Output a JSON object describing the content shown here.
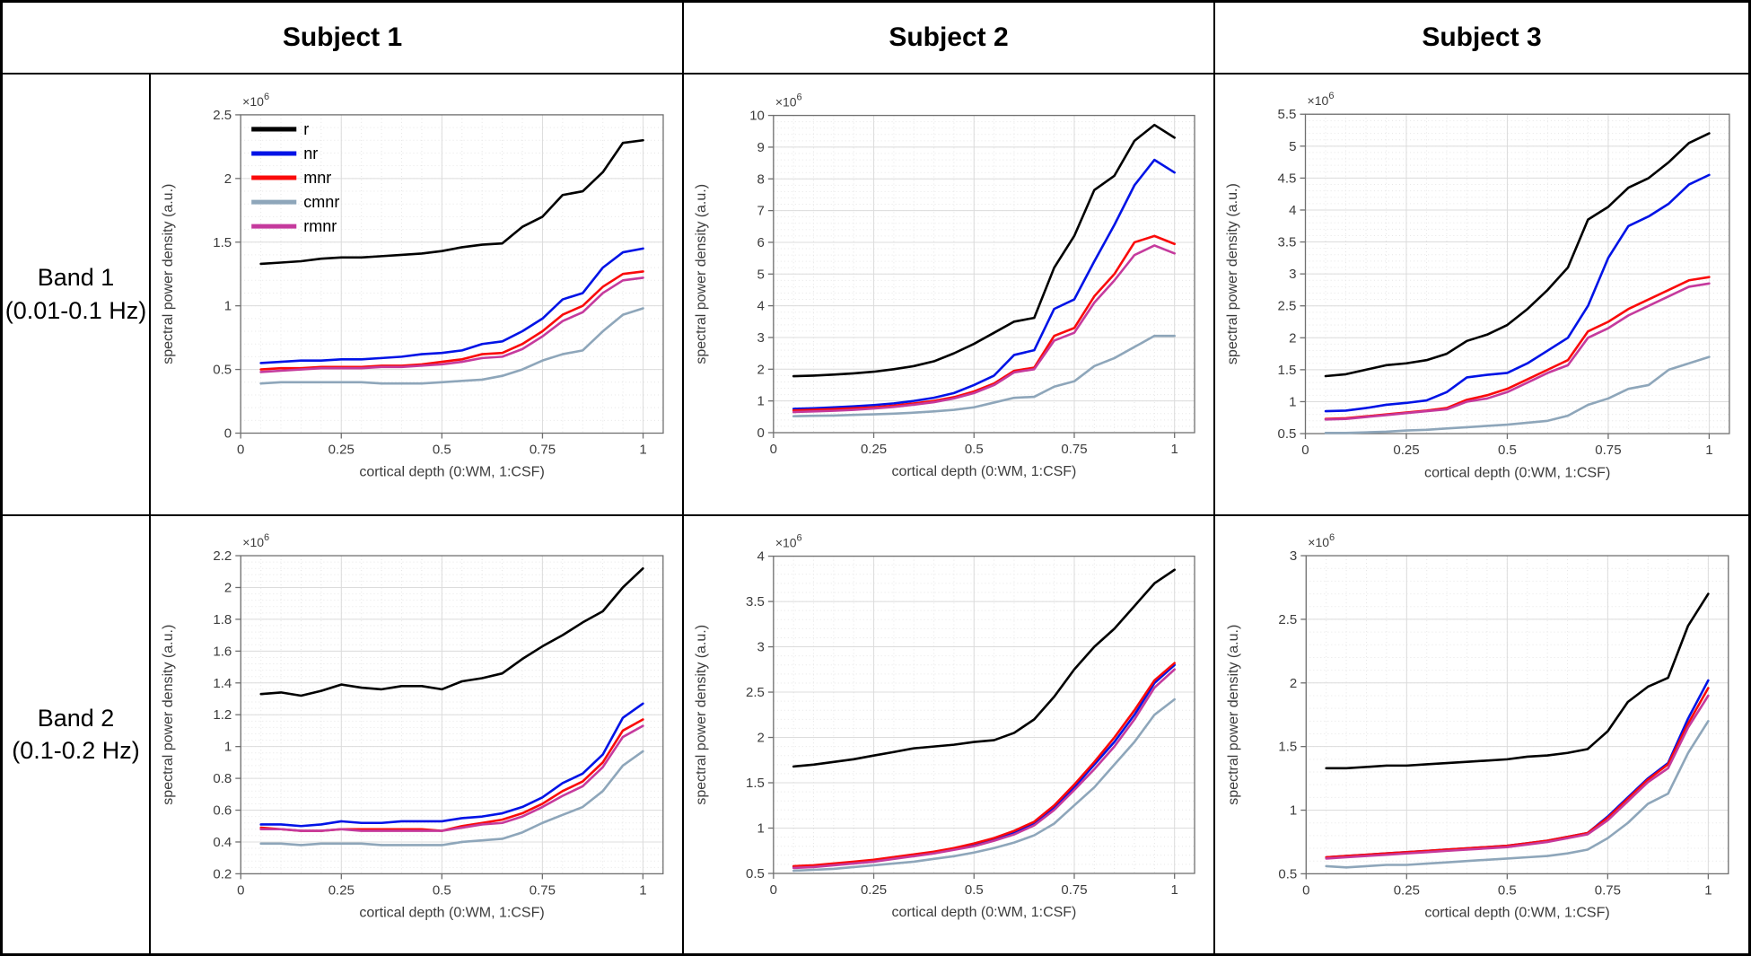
{
  "table": {
    "col_headers": [
      "Subject 1",
      "Subject 2",
      "Subject 3"
    ],
    "row_headers": [
      {
        "line1": "Band 1",
        "line2": "(0.01-0.1 Hz)"
      },
      {
        "line1": "Band 2",
        "line2": "(0.1-0.2 Hz)"
      }
    ]
  },
  "legend": {
    "position": "top-left-first-plot",
    "entries": [
      {
        "label": "r",
        "color": "#000000"
      },
      {
        "label": "nr",
        "color": "#0013e6"
      },
      {
        "label": "mnr",
        "color": "#fa0a0a"
      },
      {
        "label": "cmnr",
        "color": "#8ea6ba"
      },
      {
        "label": "rmnr",
        "color": "#c53a9d"
      }
    ]
  },
  "axes_common": {
    "xlabel": "cortical depth (0:WM, 1:CSF)",
    "ylabel": "spectral power density (a.u.)",
    "exponent_base": "×10",
    "exponent_power": "6",
    "unit_scale": "1e6",
    "grid": true,
    "minor_grid": true,
    "xlim": [
      0,
      1.05
    ],
    "xtick_vals": [
      0,
      0.25,
      0.5,
      0.75,
      1
    ],
    "xtick_labels": [
      "0",
      "0.25",
      "0.5",
      "0.75",
      "1"
    ],
    "x": [
      0.05,
      0.1,
      0.15,
      0.2,
      0.25,
      0.3,
      0.35,
      0.4,
      0.45,
      0.5,
      0.55,
      0.6,
      0.65,
      0.7,
      0.75,
      0.8,
      0.85,
      0.9,
      0.95,
      1.0
    ]
  },
  "chart_data": [
    {
      "type": "line",
      "subject": "Subject 1",
      "band": "Band 1 (0.01-0.1 Hz)",
      "show_legend": true,
      "ylim": [
        0,
        2.5
      ],
      "ytick_vals": [
        0,
        0.5,
        1,
        1.5,
        2,
        2.5
      ],
      "ytick_labels": [
        "0",
        "0.5",
        "1",
        "1.5",
        "2",
        "2.5"
      ],
      "series": [
        {
          "name": "r",
          "values": [
            1.33,
            1.34,
            1.35,
            1.37,
            1.38,
            1.38,
            1.39,
            1.4,
            1.41,
            1.43,
            1.46,
            1.48,
            1.49,
            1.62,
            1.7,
            1.87,
            1.9,
            2.05,
            2.28,
            2.3
          ]
        },
        {
          "name": "nr",
          "values": [
            0.55,
            0.56,
            0.57,
            0.57,
            0.58,
            0.58,
            0.59,
            0.6,
            0.62,
            0.63,
            0.65,
            0.7,
            0.72,
            0.8,
            0.9,
            1.05,
            1.1,
            1.3,
            1.42,
            1.45
          ]
        },
        {
          "name": "mnr",
          "values": [
            0.5,
            0.51,
            0.51,
            0.52,
            0.52,
            0.52,
            0.53,
            0.53,
            0.54,
            0.56,
            0.58,
            0.62,
            0.63,
            0.7,
            0.8,
            0.93,
            1.0,
            1.15,
            1.25,
            1.27
          ]
        },
        {
          "name": "cmnr",
          "values": [
            0.39,
            0.4,
            0.4,
            0.4,
            0.4,
            0.4,
            0.39,
            0.39,
            0.39,
            0.4,
            0.41,
            0.42,
            0.45,
            0.5,
            0.57,
            0.62,
            0.65,
            0.8,
            0.93,
            0.98
          ]
        },
        {
          "name": "rmnr",
          "values": [
            0.48,
            0.49,
            0.5,
            0.51,
            0.51,
            0.51,
            0.52,
            0.52,
            0.53,
            0.54,
            0.56,
            0.59,
            0.6,
            0.66,
            0.76,
            0.88,
            0.95,
            1.1,
            1.2,
            1.22
          ]
        }
      ]
    },
    {
      "type": "line",
      "subject": "Subject 2",
      "band": "Band 1 (0.01-0.1 Hz)",
      "show_legend": false,
      "ylim": [
        0,
        10
      ],
      "ytick_vals": [
        0,
        1,
        2,
        3,
        4,
        5,
        6,
        7,
        8,
        9,
        10
      ],
      "ytick_labels": [
        "0",
        "1",
        "2",
        "3",
        "4",
        "5",
        "6",
        "7",
        "8",
        "9",
        "10"
      ],
      "series": [
        {
          "name": "r",
          "values": [
            1.78,
            1.8,
            1.83,
            1.87,
            1.92,
            2.0,
            2.1,
            2.25,
            2.5,
            2.8,
            3.15,
            3.5,
            3.62,
            5.2,
            6.2,
            7.65,
            8.1,
            9.2,
            9.7,
            9.3
          ]
        },
        {
          "name": "nr",
          "values": [
            0.75,
            0.77,
            0.8,
            0.83,
            0.87,
            0.92,
            1.0,
            1.1,
            1.25,
            1.5,
            1.8,
            2.45,
            2.6,
            3.9,
            4.2,
            5.4,
            6.55,
            7.8,
            8.6,
            8.2
          ]
        },
        {
          "name": "mnr",
          "values": [
            0.7,
            0.72,
            0.74,
            0.77,
            0.8,
            0.85,
            0.92,
            1.0,
            1.12,
            1.3,
            1.55,
            1.95,
            2.05,
            3.05,
            3.3,
            4.3,
            5.0,
            6.0,
            6.2,
            5.95
          ]
        },
        {
          "name": "cmnr",
          "values": [
            0.52,
            0.53,
            0.54,
            0.56,
            0.58,
            0.6,
            0.63,
            0.67,
            0.72,
            0.8,
            0.95,
            1.1,
            1.13,
            1.45,
            1.62,
            2.1,
            2.35,
            2.7,
            3.05,
            3.05
          ]
        },
        {
          "name": "rmnr",
          "values": [
            0.65,
            0.67,
            0.69,
            0.72,
            0.76,
            0.81,
            0.88,
            0.96,
            1.08,
            1.25,
            1.5,
            1.9,
            2.0,
            2.9,
            3.15,
            4.1,
            4.8,
            5.6,
            5.9,
            5.65
          ]
        }
      ]
    },
    {
      "type": "line",
      "subject": "Subject 3",
      "band": "Band 1 (0.01-0.1 Hz)",
      "show_legend": false,
      "ylim": [
        0.5,
        5.5
      ],
      "ytick_vals": [
        0.5,
        1,
        1.5,
        2,
        2.5,
        3,
        3.5,
        4,
        4.5,
        5,
        5.5
      ],
      "ytick_labels": [
        "0.5",
        "1",
        "1.5",
        "2",
        "2.5",
        "3",
        "3.5",
        "4",
        "4.5",
        "5",
        "5.5"
      ],
      "series": [
        {
          "name": "r",
          "values": [
            1.4,
            1.43,
            1.5,
            1.57,
            1.6,
            1.65,
            1.75,
            1.95,
            2.05,
            2.2,
            2.45,
            2.75,
            3.1,
            3.85,
            4.05,
            4.35,
            4.5,
            4.75,
            5.05,
            5.2
          ]
        },
        {
          "name": "nr",
          "values": [
            0.85,
            0.86,
            0.9,
            0.95,
            0.98,
            1.02,
            1.15,
            1.38,
            1.42,
            1.45,
            1.6,
            1.8,
            2.0,
            2.5,
            3.25,
            3.75,
            3.9,
            4.1,
            4.4,
            4.55
          ]
        },
        {
          "name": "mnr",
          "values": [
            0.73,
            0.74,
            0.77,
            0.8,
            0.83,
            0.86,
            0.9,
            1.03,
            1.1,
            1.2,
            1.35,
            1.5,
            1.65,
            2.1,
            2.25,
            2.45,
            2.6,
            2.75,
            2.9,
            2.95
          ]
        },
        {
          "name": "cmnr",
          "values": [
            0.51,
            0.51,
            0.52,
            0.53,
            0.55,
            0.56,
            0.58,
            0.6,
            0.62,
            0.64,
            0.67,
            0.7,
            0.78,
            0.95,
            1.05,
            1.2,
            1.26,
            1.5,
            1.6,
            1.7
          ]
        },
        {
          "name": "rmnr",
          "values": [
            0.72,
            0.73,
            0.76,
            0.79,
            0.82,
            0.85,
            0.88,
            1.0,
            1.05,
            1.15,
            1.3,
            1.45,
            1.57,
            2.0,
            2.15,
            2.35,
            2.5,
            2.65,
            2.8,
            2.85
          ]
        }
      ]
    },
    {
      "type": "line",
      "subject": "Subject 1",
      "band": "Band 2 (0.1-0.2 Hz)",
      "show_legend": false,
      "ylim": [
        0.2,
        2.2
      ],
      "ytick_vals": [
        0.2,
        0.4,
        0.6,
        0.8,
        1,
        1.2,
        1.4,
        1.6,
        1.8,
        2,
        2.2
      ],
      "ytick_labels": [
        "0.2",
        "0.4",
        "0.6",
        "0.8",
        "1",
        "1.2",
        "1.4",
        "1.6",
        "1.8",
        "2",
        "2.2"
      ],
      "series": [
        {
          "name": "r",
          "values": [
            1.33,
            1.34,
            1.32,
            1.35,
            1.39,
            1.37,
            1.36,
            1.38,
            1.38,
            1.36,
            1.41,
            1.43,
            1.46,
            1.55,
            1.63,
            1.7,
            1.78,
            1.85,
            2.0,
            2.12
          ]
        },
        {
          "name": "nr",
          "values": [
            0.51,
            0.51,
            0.5,
            0.51,
            0.53,
            0.52,
            0.52,
            0.53,
            0.53,
            0.53,
            0.55,
            0.56,
            0.58,
            0.62,
            0.68,
            0.77,
            0.83,
            0.95,
            1.18,
            1.27
          ]
        },
        {
          "name": "mnr",
          "values": [
            0.49,
            0.48,
            0.47,
            0.47,
            0.48,
            0.48,
            0.48,
            0.48,
            0.48,
            0.47,
            0.5,
            0.52,
            0.54,
            0.58,
            0.64,
            0.72,
            0.78,
            0.9,
            1.1,
            1.17
          ]
        },
        {
          "name": "cmnr",
          "values": [
            0.39,
            0.39,
            0.38,
            0.39,
            0.39,
            0.39,
            0.38,
            0.38,
            0.38,
            0.38,
            0.4,
            0.41,
            0.42,
            0.46,
            0.52,
            0.57,
            0.62,
            0.72,
            0.88,
            0.97
          ]
        },
        {
          "name": "rmnr",
          "values": [
            0.48,
            0.48,
            0.47,
            0.47,
            0.48,
            0.47,
            0.47,
            0.47,
            0.47,
            0.47,
            0.49,
            0.51,
            0.52,
            0.56,
            0.62,
            0.69,
            0.75,
            0.87,
            1.06,
            1.13
          ]
        }
      ]
    },
    {
      "type": "line",
      "subject": "Subject 2",
      "band": "Band 2 (0.1-0.2 Hz)",
      "show_legend": false,
      "ylim": [
        0.5,
        4
      ],
      "ytick_vals": [
        0.5,
        1,
        1.5,
        2,
        2.5,
        3,
        3.5,
        4
      ],
      "ytick_labels": [
        "0.5",
        "1",
        "1.5",
        "2",
        "2.5",
        "3",
        "3.5",
        "4"
      ],
      "series": [
        {
          "name": "r",
          "values": [
            1.68,
            1.7,
            1.73,
            1.76,
            1.8,
            1.84,
            1.88,
            1.9,
            1.92,
            1.95,
            1.97,
            2.05,
            2.2,
            2.45,
            2.75,
            3.0,
            3.2,
            3.45,
            3.7,
            3.85
          ]
        },
        {
          "name": "nr",
          "values": [
            0.57,
            0.58,
            0.6,
            0.62,
            0.64,
            0.67,
            0.7,
            0.73,
            0.77,
            0.82,
            0.88,
            0.95,
            1.05,
            1.22,
            1.45,
            1.7,
            1.95,
            2.25,
            2.6,
            2.8
          ]
        },
        {
          "name": "mnr",
          "values": [
            0.58,
            0.59,
            0.61,
            0.63,
            0.65,
            0.68,
            0.71,
            0.74,
            0.78,
            0.83,
            0.89,
            0.97,
            1.07,
            1.25,
            1.48,
            1.73,
            2.0,
            2.3,
            2.63,
            2.82
          ]
        },
        {
          "name": "cmnr",
          "values": [
            0.53,
            0.54,
            0.55,
            0.57,
            0.59,
            0.61,
            0.63,
            0.66,
            0.69,
            0.73,
            0.78,
            0.84,
            0.92,
            1.05,
            1.25,
            1.45,
            1.7,
            1.95,
            2.25,
            2.42
          ]
        },
        {
          "name": "rmnr",
          "values": [
            0.56,
            0.57,
            0.59,
            0.61,
            0.63,
            0.66,
            0.69,
            0.72,
            0.76,
            0.8,
            0.86,
            0.93,
            1.03,
            1.2,
            1.42,
            1.65,
            1.9,
            2.2,
            2.55,
            2.75
          ]
        }
      ]
    },
    {
      "type": "line",
      "subject": "Subject 3",
      "band": "Band 2 (0.1-0.2 Hz)",
      "show_legend": false,
      "ylim": [
        0.5,
        3
      ],
      "ytick_vals": [
        0.5,
        1,
        1.5,
        2,
        2.5,
        3
      ],
      "ytick_labels": [
        "0.5",
        "1",
        "1.5",
        "2",
        "2.5",
        "3"
      ],
      "series": [
        {
          "name": "r",
          "values": [
            1.33,
            1.33,
            1.34,
            1.35,
            1.35,
            1.36,
            1.37,
            1.38,
            1.39,
            1.4,
            1.42,
            1.43,
            1.45,
            1.48,
            1.62,
            1.85,
            1.97,
            2.04,
            2.45,
            2.7
          ]
        },
        {
          "name": "nr",
          "values": [
            0.63,
            0.64,
            0.65,
            0.66,
            0.67,
            0.68,
            0.69,
            0.7,
            0.71,
            0.72,
            0.74,
            0.76,
            0.79,
            0.82,
            0.95,
            1.1,
            1.25,
            1.37,
            1.72,
            2.02
          ]
        },
        {
          "name": "mnr",
          "values": [
            0.63,
            0.64,
            0.65,
            0.66,
            0.67,
            0.68,
            0.69,
            0.7,
            0.71,
            0.72,
            0.74,
            0.76,
            0.79,
            0.82,
            0.94,
            1.09,
            1.24,
            1.36,
            1.68,
            1.96
          ]
        },
        {
          "name": "cmnr",
          "values": [
            0.56,
            0.55,
            0.56,
            0.57,
            0.57,
            0.58,
            0.59,
            0.6,
            0.61,
            0.62,
            0.63,
            0.64,
            0.66,
            0.69,
            0.78,
            0.9,
            1.05,
            1.13,
            1.45,
            1.7
          ]
        },
        {
          "name": "rmnr",
          "values": [
            0.62,
            0.63,
            0.64,
            0.65,
            0.66,
            0.67,
            0.68,
            0.69,
            0.7,
            0.71,
            0.73,
            0.75,
            0.78,
            0.81,
            0.92,
            1.07,
            1.22,
            1.33,
            1.65,
            1.9
          ]
        }
      ]
    }
  ],
  "style": {
    "axis_color": "#707070",
    "major_grid_color": "#dcdcdc",
    "minor_grid_color": "#e6e6e6",
    "tick_label_color": "#3c3c3c"
  }
}
